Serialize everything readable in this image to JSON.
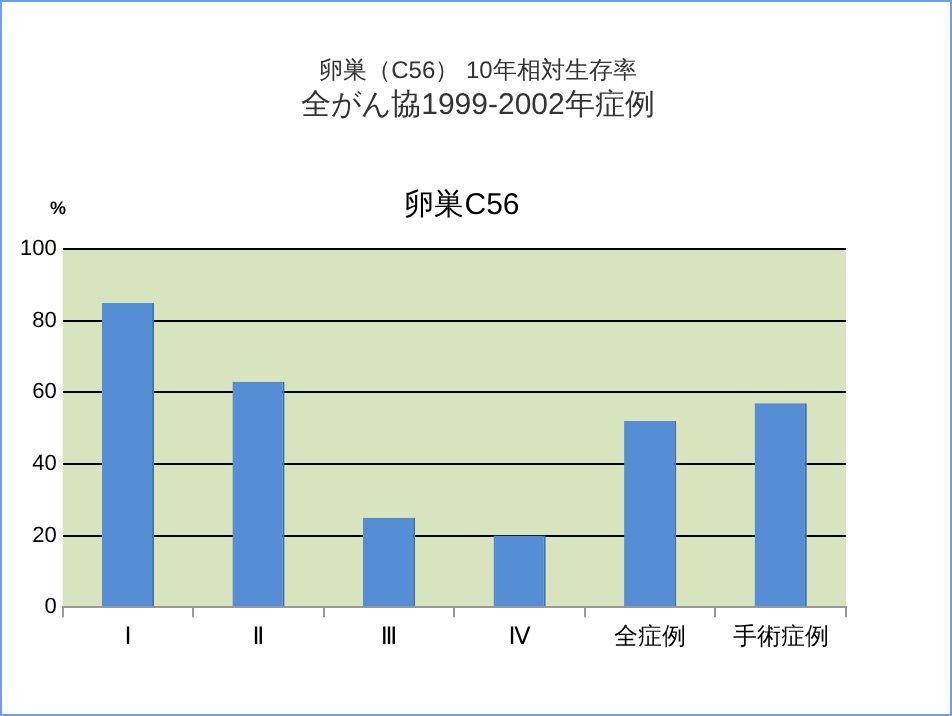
{
  "chart_data": {
    "type": "bar",
    "title": "卵巣（C56） 10年相対生存率",
    "subtitle": "全がん協1999-2002年症例",
    "annotations": [
      "卵巣C56"
    ],
    "ylabel": "%",
    "categories": [
      "Ⅰ",
      "Ⅱ",
      "Ⅲ",
      "Ⅳ",
      "全症例",
      "手術症例"
    ],
    "values": [
      85,
      63,
      25,
      20,
      52,
      57
    ],
    "color": "#558ed5",
    "ylim": [
      0,
      100
    ],
    "yticks": [
      0,
      20,
      40,
      60,
      80,
      100
    ],
    "grid": "y"
  }
}
